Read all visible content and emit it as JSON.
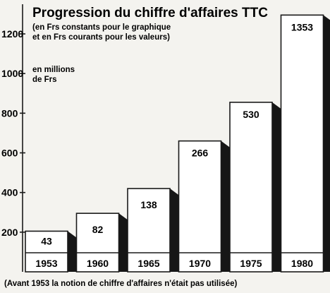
{
  "chart_data": {
    "type": "bar",
    "title": "Progression du chiffre d'affaires TTC",
    "subtitle_lines": [
      "(en Frs constants pour le graphique",
      "et en Frs courants pour les valeurs)"
    ],
    "unit_lines": [
      "en millions",
      "de Frs"
    ],
    "categories": [
      "1953",
      "1960",
      "1965",
      "1970",
      "1975",
      "1980"
    ],
    "values": [
      43,
      82,
      138,
      266,
      530,
      1353
    ],
    "bar_heights_constant_frs": [
      205,
      295,
      420,
      660,
      855,
      1295
    ],
    "yticks": [
      200,
      400,
      600,
      800,
      1000,
      1200
    ],
    "ytick_labels": [
      "200",
      "400",
      "600",
      "800",
      "1000",
      "1200"
    ],
    "ylim": [
      0,
      1300
    ],
    "grid": false,
    "footnote": "(Avant 1953 la notion de chiffre d'affaires n'était pas utilisée)",
    "colors": {
      "bar_face": "#ffffff",
      "bar_shadow": "#161616",
      "ink": "#1a1a1a"
    }
  }
}
